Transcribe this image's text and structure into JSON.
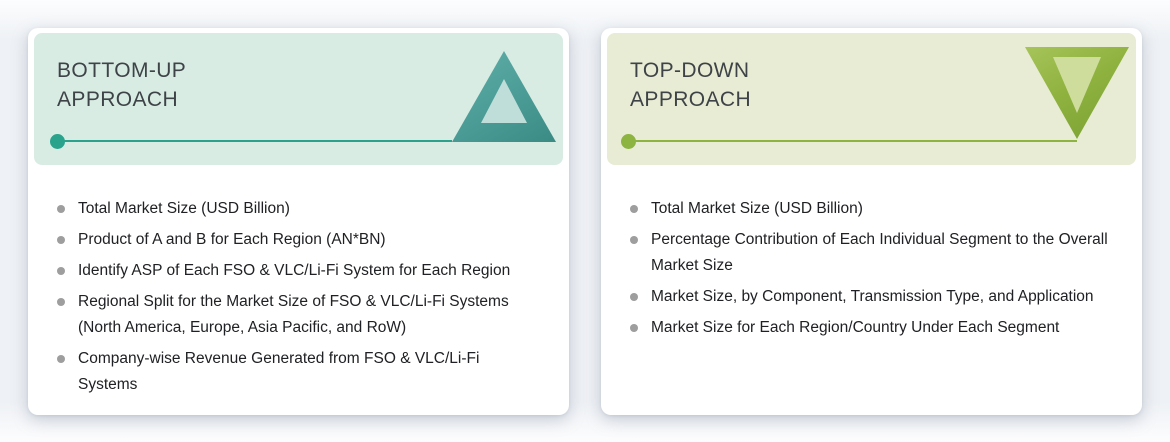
{
  "colors": {
    "page_bg": "#eef1f5",
    "card_bg": "#ffffff",
    "title_text": "#3e4347",
    "item_text": "#202124",
    "bullet": "#9e9e9e",
    "bottom_up": {
      "header_bg": "#d9ece4",
      "accent": "#2aa38d",
      "triangle": "#4f9f9a",
      "triangle_inner": "#c0ded9"
    },
    "top_down": {
      "header_bg": "#e8ecd4",
      "accent": "#8db441",
      "triangle": "#8fb23f",
      "triangle_inner": "#cedd9c"
    }
  },
  "panels": [
    {
      "id": "bottom-up",
      "title_line1": "BOTTOM-UP",
      "title_line2": "APPROACH",
      "triangle_icon": "triangle-up",
      "items": [
        "Total Market Size (USD Billion)",
        "Product of A and B for Each Region (AN*BN)",
        "Identify ASP of Each FSO & VLC/Li-Fi System for Each Region",
        "Regional Split for the Market Size of FSO & VLC/Li-Fi Systems (North America, Europe, Asia Pacific, and RoW)",
        "Company-wise Revenue Generated from FSO & VLC/Li-Fi Systems"
      ]
    },
    {
      "id": "top-down",
      "title_line1": "TOP-DOWN",
      "title_line2": "APPROACH",
      "triangle_icon": "triangle-down",
      "items": [
        "Total Market Size (USD Billion)",
        "Percentage Contribution of Each Individual Segment to the Overall Market Size",
        "Market Size, by Component, Transmission Type, and Application",
        "Market Size for Each Region/Country Under Each Segment"
      ]
    }
  ]
}
